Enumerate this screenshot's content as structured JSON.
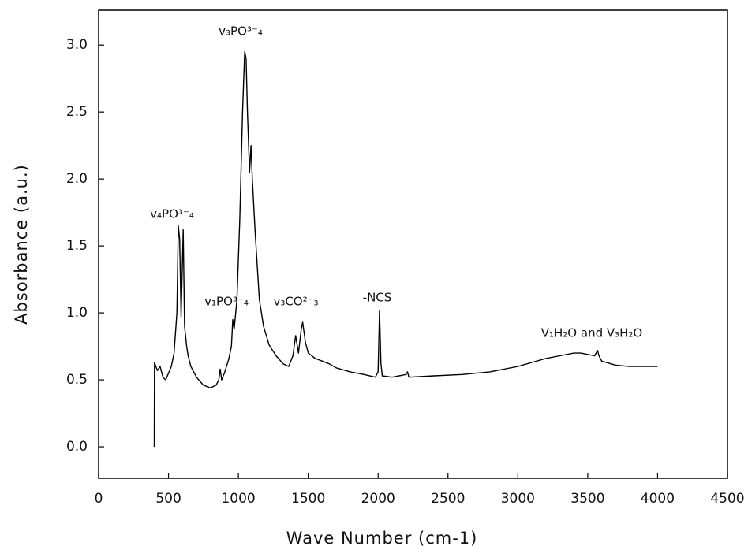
{
  "chart_data": {
    "type": "line",
    "x_label": "Wave Number (cm-1)",
    "y_label": "Absorbance (a.u.)",
    "xlim": [
      0,
      4500
    ],
    "ylim": [
      -0.235,
      3.26
    ],
    "xticks": [
      0,
      500,
      1000,
      1500,
      2000,
      2500,
      3000,
      3500,
      4000,
      4500
    ],
    "yticks": [
      {
        "value": 0,
        "label": "0.0"
      },
      0.5,
      {
        "value": 1,
        "label": "1.0"
      },
      1.5,
      {
        "value": 2,
        "label": "2.0"
      },
      2.5,
      {
        "value": 3,
        "label": "3.0"
      }
    ],
    "annotations": [
      "v₄PO³⁻₄",
      "v₃PO³⁻₄",
      "v₁PO³⁻₄",
      "v₃CO²⁻₃",
      "-NCS",
      "V₁H₂O and V₃H₂O"
    ],
    "series": [
      {
        "color": "#000000",
        "x": [
          398,
          400,
          420,
          440,
          460,
          480,
          500,
          520,
          540,
          560,
          570,
          580,
          590,
          600,
          605,
          615,
          630,
          640,
          660,
          700,
          750,
          800,
          840,
          860,
          870,
          880,
          900,
          930,
          950,
          960,
          970,
          990,
          1010,
          1030,
          1045,
          1055,
          1065,
          1075,
          1080,
          1090,
          1100,
          1120,
          1150,
          1180,
          1220,
          1270,
          1320,
          1360,
          1390,
          1410,
          1430,
          1450,
          1460,
          1480,
          1500,
          1550,
          1600,
          1650,
          1700,
          1800,
          1900,
          1980,
          2000,
          2010,
          2020,
          2030,
          2100,
          2200,
          2210,
          2220,
          2400,
          2600,
          2800,
          2900,
          3000,
          3100,
          3200,
          3300,
          3400,
          3450,
          3500,
          3550,
          3570,
          3580,
          3600,
          3700,
          3800,
          3900,
          4000
        ],
        "values": [
          0.0,
          0.63,
          0.57,
          0.6,
          0.52,
          0.5,
          0.55,
          0.6,
          0.7,
          1.0,
          1.65,
          1.55,
          0.97,
          1.4,
          1.62,
          0.9,
          0.75,
          0.68,
          0.6,
          0.52,
          0.46,
          0.44,
          0.46,
          0.5,
          0.58,
          0.5,
          0.55,
          0.65,
          0.75,
          0.95,
          0.88,
          1.1,
          1.7,
          2.5,
          2.95,
          2.9,
          2.5,
          2.2,
          2.05,
          2.25,
          2.0,
          1.6,
          1.1,
          0.9,
          0.76,
          0.68,
          0.62,
          0.6,
          0.68,
          0.83,
          0.7,
          0.88,
          0.93,
          0.78,
          0.7,
          0.66,
          0.64,
          0.62,
          0.59,
          0.56,
          0.54,
          0.52,
          0.56,
          1.02,
          0.62,
          0.53,
          0.52,
          0.54,
          0.56,
          0.52,
          0.53,
          0.54,
          0.56,
          0.58,
          0.6,
          0.63,
          0.66,
          0.68,
          0.7,
          0.7,
          0.69,
          0.68,
          0.72,
          0.68,
          0.64,
          0.61,
          0.6,
          0.6,
          0.6
        ]
      }
    ]
  }
}
